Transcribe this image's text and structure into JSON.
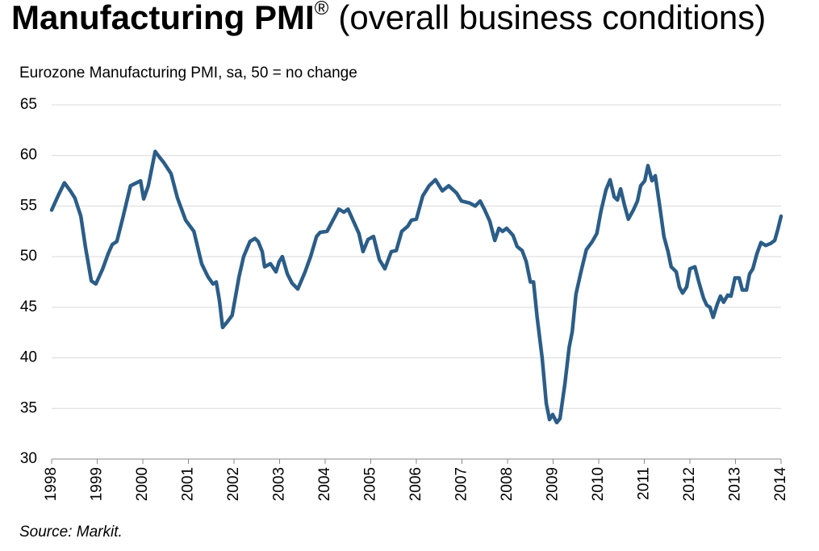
{
  "chart_data": {
    "type": "line",
    "title": "Manufacturing PMI",
    "title_mark": "®",
    "title_suffix": "(overall business conditions)",
    "subtitle": "Eurozone Manufacturing PMI, sa, 50 = no change",
    "source": "Source: Markit.",
    "xlim": [
      1998,
      2014
    ],
    "xticks": [
      1998,
      1999,
      2000,
      2001,
      2002,
      2003,
      2004,
      2005,
      2006,
      2007,
      2008,
      2009,
      2010,
      2011,
      2012,
      2013,
      2014
    ],
    "ylim": [
      30,
      65
    ],
    "yticks": [
      30,
      35,
      40,
      45,
      50,
      55,
      60,
      65
    ],
    "grid": true,
    "series": [
      {
        "name": "Eurozone Manufacturing PMI",
        "color": "#2b5d87",
        "x": [
          1998.0,
          1998.14,
          1998.28,
          1998.41,
          1998.51,
          1998.64,
          1998.74,
          1998.87,
          1998.97,
          1999.12,
          1999.24,
          1999.33,
          1999.43,
          1999.56,
          1999.73,
          1999.95,
          2000.02,
          2000.12,
          2000.27,
          2000.37,
          2000.46,
          2000.62,
          2000.76,
          2000.94,
          2001.12,
          2001.29,
          2001.43,
          2001.54,
          2001.61,
          2001.68,
          2001.75,
          2001.86,
          2001.96,
          2002.11,
          2002.21,
          2002.35,
          2002.46,
          2002.53,
          2002.62,
          2002.67,
          2002.8,
          2002.92,
          2002.99,
          2003.06,
          2003.17,
          2003.27,
          2003.4,
          2003.56,
          2003.68,
          2003.81,
          2003.89,
          2004.04,
          2004.16,
          2004.3,
          2004.41,
          2004.5,
          2004.62,
          2004.74,
          2004.83,
          2004.94,
          2005.06,
          2005.19,
          2005.31,
          2005.45,
          2005.56,
          2005.68,
          2005.81,
          2005.89,
          2006.0,
          2006.14,
          2006.28,
          2006.42,
          2006.57,
          2006.71,
          2006.88,
          2006.99,
          2007.17,
          2007.29,
          2007.4,
          2007.5,
          2007.61,
          2007.72,
          2007.81,
          2007.89,
          2007.98,
          2008.12,
          2008.21,
          2008.32,
          2008.41,
          2008.5,
          2008.57,
          2008.65,
          2008.76,
          2008.85,
          2008.92,
          2008.99,
          2009.08,
          2009.15,
          2009.26,
          2009.35,
          2009.42,
          2009.5,
          2009.61,
          2009.73,
          2009.86,
          2009.96,
          2010.05,
          2010.16,
          2010.25,
          2010.34,
          2010.41,
          2010.48,
          2010.57,
          2010.65,
          2010.76,
          2010.85,
          2010.92,
          2011.01,
          2011.08,
          2011.17,
          2011.24,
          2011.35,
          2011.43,
          2011.52,
          2011.59,
          2011.7,
          2011.77,
          2011.84,
          2011.93,
          2012.0,
          2012.11,
          2012.19,
          2012.3,
          2012.37,
          2012.44,
          2012.51,
          2012.6,
          2012.67,
          2012.74,
          2012.83,
          2012.9,
          2012.99,
          2013.08,
          2013.15,
          2013.24,
          2013.31,
          2013.38,
          2013.47,
          2013.56,
          2013.66,
          2013.77,
          2013.86,
          2013.93,
          2014.0
        ],
        "values": [
          54.6,
          56.0,
          57.3,
          56.5,
          55.8,
          54.0,
          51.0,
          47.6,
          47.3,
          48.8,
          50.3,
          51.2,
          51.5,
          53.8,
          57.0,
          57.5,
          55.7,
          57.0,
          60.4,
          59.8,
          59.3,
          58.2,
          55.8,
          53.6,
          52.5,
          49.3,
          48.0,
          47.3,
          47.5,
          45.7,
          43.0,
          43.6,
          44.2,
          48.0,
          50.0,
          51.5,
          51.8,
          51.5,
          50.5,
          49.0,
          49.3,
          48.5,
          49.5,
          50.0,
          48.3,
          47.4,
          46.8,
          48.5,
          50.0,
          52.0,
          52.4,
          52.5,
          53.5,
          54.7,
          54.4,
          54.7,
          53.5,
          52.3,
          50.5,
          51.7,
          52.0,
          49.7,
          48.8,
          50.5,
          50.6,
          52.5,
          53.0,
          53.6,
          53.7,
          56.0,
          57.0,
          57.6,
          56.5,
          57.0,
          56.3,
          55.5,
          55.3,
          55.0,
          55.5,
          54.6,
          53.5,
          51.6,
          52.8,
          52.5,
          52.8,
          52.1,
          51.0,
          50.6,
          49.5,
          47.5,
          47.5,
          44.0,
          40.0,
          35.5,
          33.9,
          34.4,
          33.6,
          34.0,
          37.5,
          41.0,
          42.6,
          46.3,
          48.5,
          50.7,
          51.5,
          52.3,
          54.5,
          56.6,
          57.6,
          55.9,
          55.6,
          56.7,
          55.0,
          53.7,
          54.6,
          55.5,
          57.0,
          57.5,
          59.0,
          57.5,
          58.0,
          54.6,
          52.0,
          50.5,
          49.0,
          48.5,
          47.0,
          46.4,
          47.0,
          48.8,
          49.0,
          47.6,
          45.9,
          45.2,
          45.0,
          44.0,
          45.3,
          46.1,
          45.5,
          46.2,
          46.1,
          47.9,
          47.9,
          46.7,
          46.7,
          48.3,
          48.8,
          50.3,
          51.4,
          51.1,
          51.3,
          51.6,
          52.7,
          54.0
        ]
      }
    ]
  }
}
